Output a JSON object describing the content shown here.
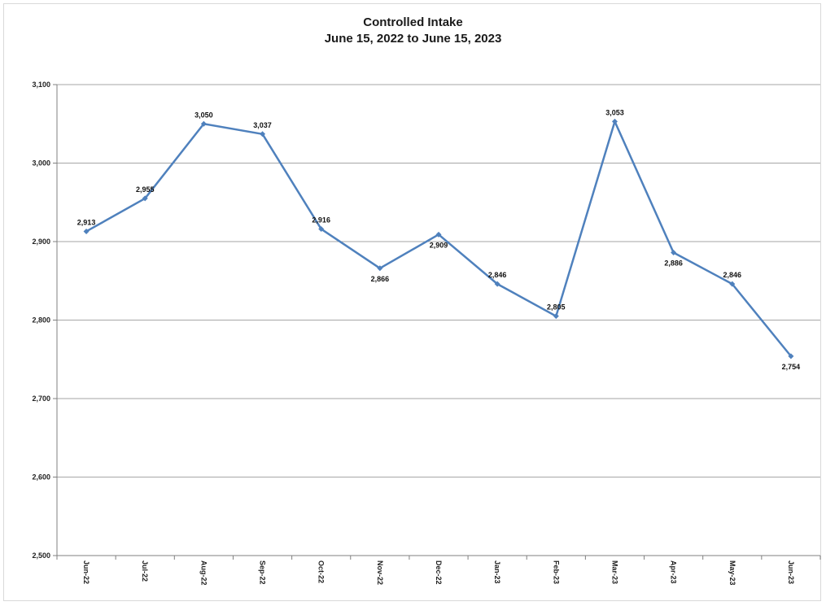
{
  "chart_data": {
    "type": "line",
    "title": "Controlled Intake",
    "subtitle": "June 15, 2022 to June 15, 2023",
    "xlabel": "",
    "ylabel": "",
    "ylim": [
      2500,
      3100
    ],
    "yticks": [
      2500,
      2600,
      2700,
      2800,
      2900,
      3000,
      3100
    ],
    "ytick_labels": [
      "2,500",
      "2,600",
      "2,700",
      "2,800",
      "2,900",
      "3,000",
      "3,100"
    ],
    "grid": true,
    "categories": [
      "Jun-22",
      "Jul-22",
      "Aug-22",
      "Sep-22",
      "Oct-22",
      "Nov-22",
      "Dec-22",
      "Jan-23",
      "Feb-23",
      "Mar-23",
      "Apr-23",
      "May-23",
      "Jun-23"
    ],
    "series": [
      {
        "values": [
          2913,
          2955,
          3050,
          3037,
          2916,
          2866,
          2909,
          2846,
          2805,
          3053,
          2886,
          2846,
          2754
        ],
        "labels": [
          "2,913",
          "2,955",
          "3,050",
          "3,037",
          "2,916",
          "2,866",
          "2,909",
          "2,846",
          "2,805",
          "3,053",
          "2,886",
          "2,846",
          "2,754"
        ],
        "label_positions": [
          "above",
          "above",
          "above",
          "above",
          "above",
          "below",
          "below",
          "above",
          "above",
          "above",
          "below",
          "above",
          "below"
        ],
        "color": "#4f81bd"
      }
    ],
    "gridline_color": "#a6a6a6"
  }
}
